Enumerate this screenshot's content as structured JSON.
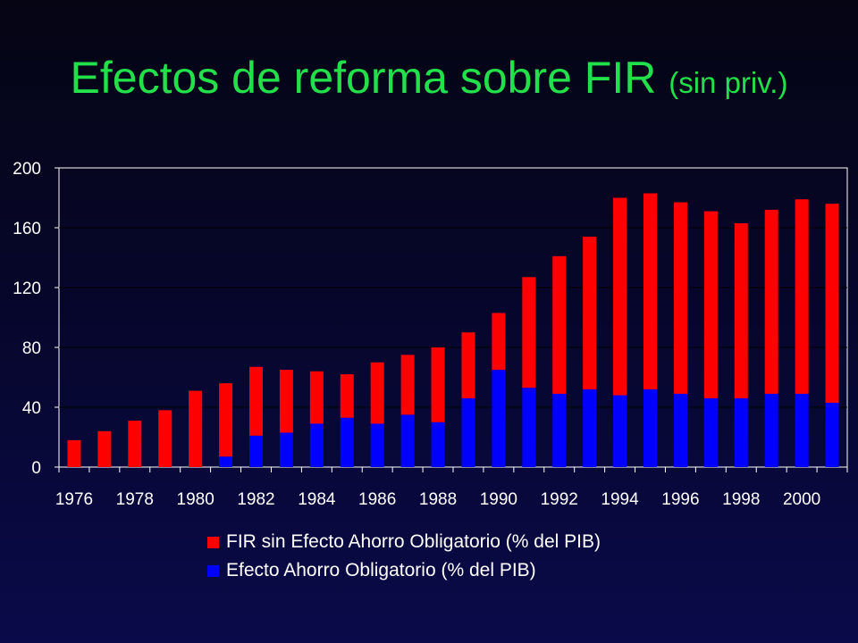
{
  "title": {
    "main": "Efectos de reforma sobre FIR",
    "sub": "(sin priv.)"
  },
  "colors": {
    "fir": "#ff0000",
    "efecto": "#0000ff",
    "title": "#22e04a"
  },
  "chart_data": {
    "type": "bar",
    "stacked": true,
    "x": [
      1976,
      1977,
      1978,
      1979,
      1980,
      1981,
      1982,
      1983,
      1984,
      1985,
      1986,
      1987,
      1988,
      1989,
      1990,
      1991,
      1992,
      1993,
      1994,
      1995,
      1996,
      1997,
      1998,
      1999,
      2000,
      2001
    ],
    "x_tick_labels": [
      "1976",
      "1978",
      "1980",
      "1982",
      "1984",
      "1986",
      "1988",
      "1990",
      "1992",
      "1994",
      "1996",
      "1998",
      "2000"
    ],
    "y_ticks": [
      "0",
      "40",
      "80",
      "120",
      "160",
      "200"
    ],
    "ylim": [
      0,
      200
    ],
    "series": [
      {
        "name": "Efecto Ahorro Obligatorio (% del PIB)",
        "color": "#0000ff",
        "values": [
          0,
          0,
          0,
          0,
          0,
          7,
          21,
          23,
          29,
          33,
          29,
          35,
          30,
          46,
          65,
          53,
          49,
          52,
          48,
          52,
          49,
          46,
          46,
          49,
          49,
          43
        ]
      },
      {
        "name": "FIR sin Efecto Ahorro Obligatorio (% del PIB)",
        "color": "#ff0000",
        "values": [
          18,
          24,
          31,
          38,
          51,
          49,
          46,
          42,
          35,
          29,
          41,
          40,
          50,
          44,
          38,
          74,
          92,
          102,
          132,
          131,
          128,
          125,
          117,
          123,
          130,
          133
        ]
      }
    ],
    "legend": [
      {
        "label": "FIR sin Efecto Ahorro Obligatorio (% del PIB)",
        "color": "#ff0000"
      },
      {
        "label": "Efecto Ahorro Obligatorio (% del PIB)",
        "color": "#0000ff"
      }
    ],
    "grid": true,
    "legend_position": "bottom"
  }
}
